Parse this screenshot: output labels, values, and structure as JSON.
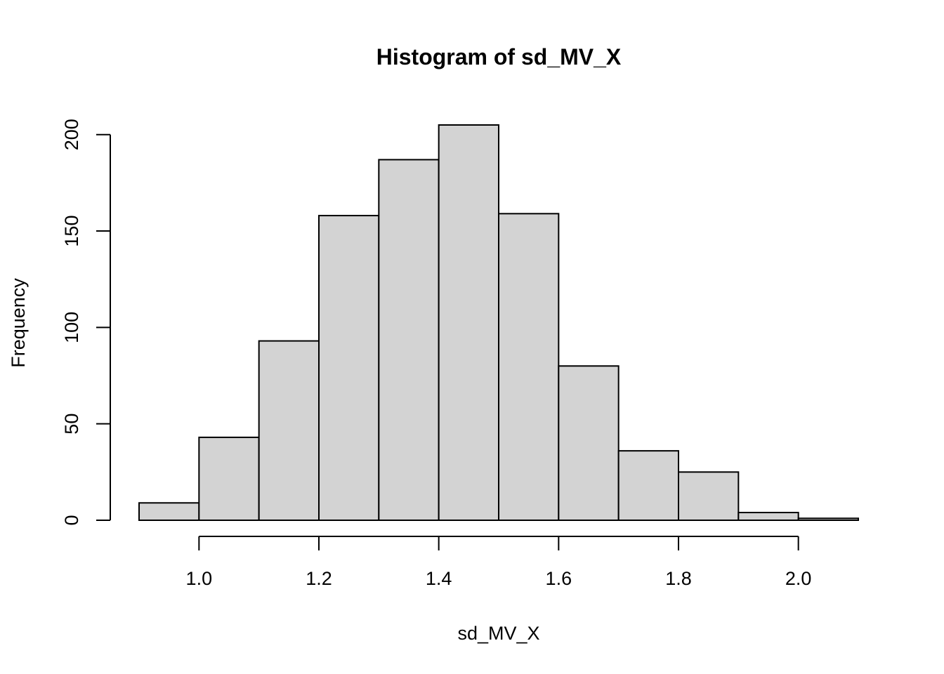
{
  "chart_data": {
    "type": "bar",
    "title": "Histogram of sd_MV_X",
    "xlabel": "sd_MV_X",
    "ylabel": "Frequency",
    "bins": [
      {
        "start": 0.9,
        "end": 1.0,
        "count": 9
      },
      {
        "start": 1.0,
        "end": 1.1,
        "count": 43
      },
      {
        "start": 1.1,
        "end": 1.2,
        "count": 93
      },
      {
        "start": 1.2,
        "end": 1.3,
        "count": 158
      },
      {
        "start": 1.3,
        "end": 1.4,
        "count": 187
      },
      {
        "start": 1.4,
        "end": 1.5,
        "count": 205
      },
      {
        "start": 1.5,
        "end": 1.6,
        "count": 159
      },
      {
        "start": 1.6,
        "end": 1.7,
        "count": 80
      },
      {
        "start": 1.7,
        "end": 1.8,
        "count": 36
      },
      {
        "start": 1.8,
        "end": 1.9,
        "count": 25
      },
      {
        "start": 1.9,
        "end": 2.0,
        "count": 4
      },
      {
        "start": 2.0,
        "end": 2.1,
        "count": 1
      }
    ],
    "x_ticks": [
      "1.0",
      "1.2",
      "1.4",
      "1.6",
      "1.8",
      "2.0"
    ],
    "y_ticks": [
      "0",
      "50",
      "100",
      "150",
      "200"
    ],
    "xlim": [
      0.9,
      2.1
    ],
    "ylim": [
      0,
      205
    ],
    "grid": false,
    "bar_fill": "#d3d3d3",
    "bar_stroke": "#000000"
  }
}
